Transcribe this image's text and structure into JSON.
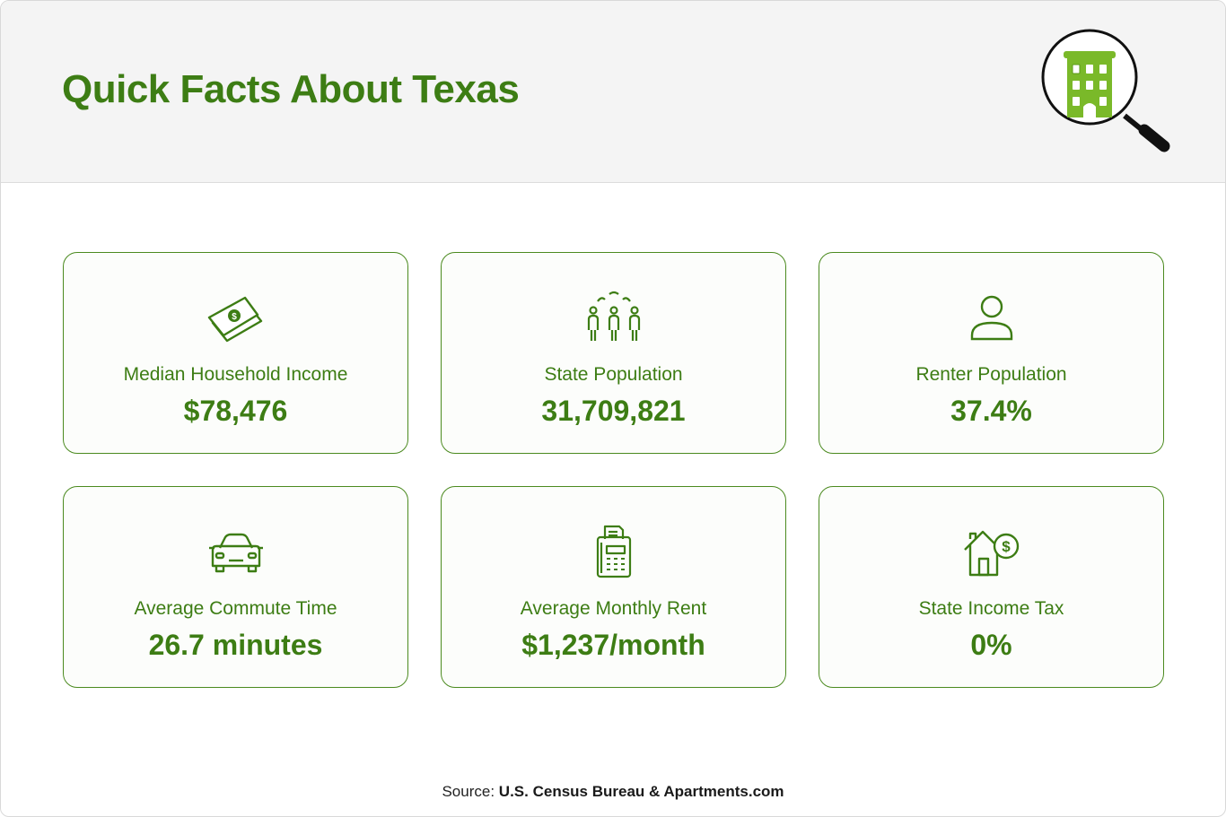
{
  "header": {
    "title": "Quick Facts About Texas"
  },
  "logo": {
    "icon": "magnifier-building-icon"
  },
  "cards": [
    {
      "icon": "cash-icon",
      "label": "Median Household Income",
      "value": "$78,476"
    },
    {
      "icon": "people-group-icon",
      "label": "State Population",
      "value": "31,709,821"
    },
    {
      "icon": "person-icon",
      "label": "Renter Population",
      "value": "37.4%"
    },
    {
      "icon": "car-icon",
      "label": "Average Commute Time",
      "value": "26.7 minutes"
    },
    {
      "icon": "calculator-receipt-icon",
      "label": "Average Monthly Rent",
      "value": "$1,237/month"
    },
    {
      "icon": "house-dollar-icon",
      "label": "State Income Tax",
      "value": "0%"
    }
  ],
  "footer": {
    "source_prefix": "Source:",
    "source_text": "U.S. Census Bureau & Apartments.com"
  },
  "colors": {
    "accent": "#3d7d14",
    "card_border": "#4b8a1f",
    "header_bg": "#f4f4f4",
    "logo_green": "#7ab929"
  }
}
